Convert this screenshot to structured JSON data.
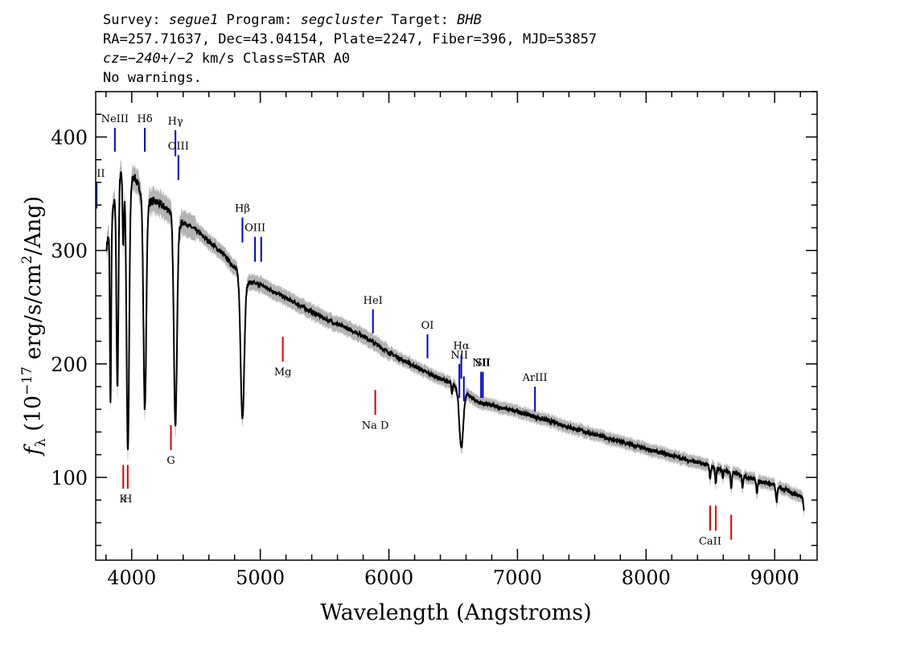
{
  "header": {
    "line1": {
      "survey_label": "Survey: ",
      "survey": "segue1",
      "program_label": " Program: ",
      "program": "segcluster",
      "target_label": " Target: ",
      "target": "BHB"
    },
    "line2": "RA=257.71637, Dec=43.04154, Plate=2247, Fiber=396, MJD=53857",
    "line3": {
      "cz_label": "cz=",
      "cz": "−240+/−2",
      "rest": " km/s Class=STAR A0"
    },
    "line4": "No warnings."
  },
  "colors": {
    "spectrum": "#000000",
    "error_band": "#b4b4b4",
    "emission_marker": "#0000cc",
    "absorption_marker": "#dd0000"
  },
  "chart_data": {
    "type": "line",
    "xlabel": "Wavelength (Angstroms)",
    "ylabel": "fλ (10⁻¹⁷ erg/s/cm²/Ang)",
    "xlim": [
      3720,
      9330
    ],
    "ylim": [
      27,
      440
    ],
    "x_ticks": [
      4000,
      5000,
      6000,
      7000,
      8000,
      9000
    ],
    "y_ticks": [
      100,
      200,
      300,
      400
    ],
    "continuum": {
      "x": [
        3800,
        3860,
        3900,
        3960,
        4020,
        4100,
        4200,
        4300,
        4350,
        4400,
        4500,
        4700,
        4900,
        5000,
        5200,
        5500,
        5800,
        6000,
        6300,
        6500,
        6700,
        7000,
        7500,
        8000,
        8500,
        9000,
        9230
      ],
      "y": [
        300,
        340,
        375,
        355,
        365,
        345,
        342,
        335,
        320,
        325,
        318,
        298,
        272,
        270,
        258,
        240,
        225,
        210,
        192,
        182,
        166,
        158,
        141,
        125,
        110,
        93,
        82
      ]
    },
    "absorption_features": [
      {
        "center": 3835,
        "depth": 160,
        "width": 5
      },
      {
        "center": 3889,
        "depth": 185,
        "width": 8
      },
      {
        "center": 3934,
        "depth": 60,
        "width": 5
      },
      {
        "center": 3970,
        "depth": 235,
        "width": 10
      },
      {
        "center": 4102,
        "depth": 185,
        "width": 11
      },
      {
        "center": 4340,
        "depth": 175,
        "width": 12
      },
      {
        "center": 4861,
        "depth": 125,
        "width": 14
      },
      {
        "center": 6563,
        "depth": 52,
        "width": 15
      },
      {
        "center": 6490,
        "depth": 10,
        "width": 4
      },
      {
        "center": 8498,
        "depth": 12,
        "width": 5
      },
      {
        "center": 8542,
        "depth": 14,
        "width": 5
      },
      {
        "center": 8598,
        "depth": 8,
        "width": 4
      },
      {
        "center": 8662,
        "depth": 14,
        "width": 5
      },
      {
        "center": 8750,
        "depth": 10,
        "width": 4
      },
      {
        "center": 8863,
        "depth": 12,
        "width": 5
      },
      {
        "center": 9015,
        "depth": 14,
        "width": 6
      },
      {
        "center": 9230,
        "depth": 10,
        "width": 6
      }
    ],
    "line_markers": [
      {
        "label": "OII",
        "x": 3727,
        "y0": 337,
        "y1": 360,
        "kind": "emission"
      },
      {
        "label": "NeIII",
        "x": 3869,
        "y0": 387,
        "y1": 408,
        "kind": "emission"
      },
      {
        "label": "Hδ",
        "x": 4102,
        "y0": 387,
        "y1": 408,
        "kind": "emission"
      },
      {
        "label": "Hγ",
        "x": 4340,
        "y0": 383,
        "y1": 406,
        "kind": "emission"
      },
      {
        "label": "OIII",
        "x": 4363,
        "y0": 362,
        "y1": 384,
        "kind": "emission"
      },
      {
        "label": "Hβ",
        "x": 4861,
        "y0": 307,
        "y1": 329,
        "kind": "emission"
      },
      {
        "label": "OIII",
        "x": 4959,
        "y0": 290,
        "y1": 312,
        "kind": "emission"
      },
      {
        "label": "",
        "x": 5007,
        "y0": 290,
        "y1": 312,
        "kind": "emission"
      },
      {
        "label": "HeI",
        "x": 5876,
        "y0": 227,
        "y1": 248,
        "kind": "emission"
      },
      {
        "label": "OI",
        "x": 6300,
        "y0": 205,
        "y1": 226,
        "kind": "emission"
      },
      {
        "label": "NII",
        "x": 6548,
        "y0": 170,
        "y1": 200,
        "kind": "emission"
      },
      {
        "label": "Hα",
        "x": 6563,
        "y0": 187,
        "y1": 208,
        "kind": "emission"
      },
      {
        "label": "",
        "x": 6583,
        "y0": 167,
        "y1": 189,
        "kind": "emission"
      },
      {
        "label": "NII",
        "x": 6717,
        "y0": 170,
        "y1": 193,
        "kind": "emission"
      },
      {
        "label": "SII",
        "x": 6731,
        "y0": 170,
        "y1": 193,
        "kind": "emission"
      },
      {
        "label": "ArIII",
        "x": 7136,
        "y0": 158,
        "y1": 180,
        "kind": "emission"
      },
      {
        "label": "K",
        "x": 3934,
        "y0": 90,
        "y1": 111,
        "kind": "absorption"
      },
      {
        "label": "H",
        "x": 3969,
        "y0": 90,
        "y1": 111,
        "kind": "absorption"
      },
      {
        "label": "G",
        "x": 4305,
        "y0": 124,
        "y1": 146,
        "kind": "absorption"
      },
      {
        "label": "Mg",
        "x": 5175,
        "y0": 202,
        "y1": 224,
        "kind": "absorption"
      },
      {
        "label": "Na D",
        "x": 5894,
        "y0": 155,
        "y1": 177,
        "kind": "absorption"
      },
      {
        "label": "CaII",
        "x": 8498,
        "y0": 53,
        "y1": 75,
        "kind": "absorption"
      },
      {
        "label": "",
        "x": 8542,
        "y0": 53,
        "y1": 75,
        "kind": "absorption"
      },
      {
        "label": "",
        "x": 8662,
        "y0": 45,
        "y1": 67,
        "kind": "absorption"
      }
    ]
  }
}
